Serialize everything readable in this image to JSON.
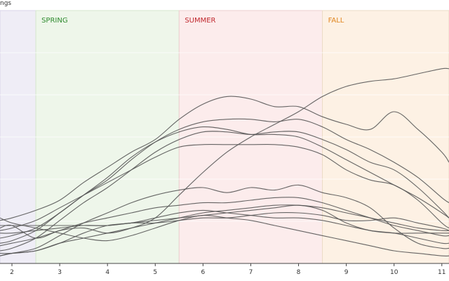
{
  "chart_data": {
    "type": "line",
    "corner_label": "ngs",
    "x_ticks": [
      2,
      3,
      4,
      5,
      6,
      7,
      8,
      9,
      10,
      11
    ],
    "xlim": [
      1.75,
      11.15
    ],
    "ylim": [
      0,
      100
    ],
    "grid": true,
    "seasons": [
      {
        "label": "",
        "start": 1.75,
        "end": 2.5,
        "fill": "#efedf6",
        "border": "#d9d4e8",
        "text_color": "#7a6aa8"
      },
      {
        "label": "SPRING",
        "start": 2.5,
        "end": 5.5,
        "fill": "#eef6ea",
        "border": "#d6e7cf",
        "text_color": "#2e8b2e"
      },
      {
        "label": "SUMMER",
        "start": 5.5,
        "end": 8.5,
        "fill": "#fcecec",
        "border": "#ecd0d0",
        "text_color": "#c0282e"
      },
      {
        "label": "FALL",
        "start": 8.5,
        "end": 11.15,
        "fill": "#fdf1e4",
        "border": "#ecdcc6",
        "text_color": "#e0861f"
      }
    ],
    "line_color": "#555555",
    "series": [
      {
        "x": [
          1.75,
          2,
          2.5,
          3,
          3.5,
          4,
          4.5,
          5,
          5.5,
          6,
          6.5,
          7,
          7.5,
          8,
          8.5,
          9,
          9.5,
          10,
          10.5,
          11,
          11.15
        ],
        "y": [
          14,
          15,
          10,
          13,
          14,
          12,
          14,
          18,
          27,
          36,
          44,
          50,
          55,
          60,
          66,
          70,
          72,
          73,
          75,
          77,
          77
        ]
      },
      {
        "x": [
          1.75,
          2,
          2.5,
          3,
          3.5,
          4,
          4.5,
          5,
          5.5,
          6,
          6.5,
          7,
          7.5,
          8,
          8.5,
          9,
          9.5,
          10,
          10.5,
          11,
          11.15
        ],
        "y": [
          17,
          18,
          21,
          25,
          32,
          38,
          44,
          49,
          57,
          63,
          66,
          65,
          62,
          62,
          58,
          55,
          53,
          60,
          53,
          44,
          40
        ]
      },
      {
        "x": [
          1.75,
          2,
          2.5,
          3,
          3.5,
          4,
          4.5,
          5,
          5.5,
          6,
          6.5,
          7,
          7.5,
          8,
          8.5,
          9,
          9.5,
          10,
          10.5,
          11,
          11.15
        ],
        "y": [
          10,
          11,
          14,
          20,
          27,
          33,
          41,
          48,
          53,
          56,
          57,
          57,
          56,
          57,
          54,
          49,
          45,
          40,
          34,
          26,
          24
        ]
      },
      {
        "x": [
          1.75,
          2,
          2.5,
          3,
          3.5,
          4,
          4.5,
          5,
          5.5,
          6,
          6.5,
          7,
          7.5,
          8,
          8.5,
          9,
          9.5,
          10,
          10.5,
          11,
          11.15
        ],
        "y": [
          8,
          9,
          13,
          20,
          27,
          34,
          42,
          48,
          52,
          54,
          53,
          51,
          51,
          50,
          46,
          41,
          36,
          31,
          26,
          20,
          18
        ]
      },
      {
        "x": [
          1.75,
          2,
          2.5,
          3,
          3.5,
          4,
          4.5,
          5,
          5.5,
          6,
          6.5,
          7,
          7.5,
          8,
          8.5,
          9,
          9.5,
          10,
          10.5,
          11,
          11.15
        ],
        "y": [
          5,
          6,
          10,
          17,
          24,
          30,
          37,
          44,
          49,
          52,
          52,
          51,
          52,
          52,
          49,
          45,
          40,
          37,
          30,
          21,
          18
        ]
      },
      {
        "x": [
          1.75,
          2,
          2.5,
          3,
          3.5,
          4,
          4.5,
          5,
          5.5,
          6,
          6.5,
          7,
          7.5,
          8,
          8.5,
          9,
          9.5,
          10,
          10.5,
          11,
          11.15
        ],
        "y": [
          13,
          14,
          17,
          22,
          27,
          32,
          37,
          42,
          46,
          47,
          47,
          47,
          47,
          46,
          43,
          37,
          33,
          31,
          25,
          16,
          14
        ]
      },
      {
        "x": [
          1.75,
          2,
          2.5,
          3,
          3.5,
          4,
          4.5,
          5,
          5.5,
          6,
          6.5,
          7,
          7.5,
          8,
          8.5,
          9,
          9.5,
          10,
          10.5,
          11,
          11.15
        ],
        "y": [
          3,
          4,
          6,
          11,
          16,
          20,
          24,
          27,
          29,
          30,
          28,
          30,
          29,
          31,
          28,
          26,
          22,
          14,
          8,
          6,
          6
        ]
      },
      {
        "x": [
          1.75,
          2,
          2.5,
          3,
          3.5,
          4,
          4.5,
          5,
          5.5,
          6,
          6.5,
          7,
          7.5,
          8,
          8.5,
          9,
          9.5,
          10,
          10.5,
          11,
          11.15
        ],
        "y": [
          15,
          15,
          15,
          15,
          15,
          15,
          16,
          16,
          17,
          18,
          18,
          19,
          20,
          20,
          19,
          17,
          17,
          18,
          16,
          14,
          13
        ]
      },
      {
        "x": [
          1.75,
          2,
          2.5,
          3,
          3.5,
          4,
          4.5,
          5,
          5.5,
          6,
          6.5,
          7,
          7.5,
          8,
          8.5,
          9,
          9.5,
          10,
          10.5,
          11,
          11.15
        ],
        "y": [
          12,
          12,
          13,
          14,
          15,
          15,
          16,
          17,
          18,
          19,
          20,
          21,
          22,
          23,
          21,
          16,
          13,
          12,
          12,
          12,
          12
        ]
      },
      {
        "x": [
          1.75,
          2,
          2.5,
          3,
          3.5,
          4,
          4.5,
          5,
          5.5,
          6,
          6.5,
          7,
          7.5,
          8,
          8.5,
          9,
          9.5,
          10,
          10.5,
          11,
          11.15
        ],
        "y": [
          7,
          8,
          10,
          13,
          16,
          18,
          20,
          22,
          23,
          24,
          24,
          25,
          26,
          26,
          24,
          21,
          18,
          15,
          13,
          11,
          11
        ]
      },
      {
        "x": [
          1.75,
          2,
          2.5,
          3,
          3.5,
          4,
          4.5,
          5,
          5.5,
          6,
          6.5,
          7,
          7.5,
          8,
          8.5,
          9,
          9.5,
          10,
          10.5,
          11,
          11.15
        ],
        "y": [
          18,
          16,
          14,
          12,
          10,
          9,
          11,
          14,
          17,
          19,
          18,
          17,
          15,
          13,
          11,
          9,
          7,
          5,
          4,
          3,
          3
        ]
      },
      {
        "x": [
          1.75,
          2,
          2.5,
          3,
          3.5,
          4,
          4.5,
          5,
          5.5,
          6,
          6.5,
          7,
          7.5,
          8,
          8.5,
          9,
          9.5,
          10,
          10.5,
          11,
          11.15
        ],
        "y": [
          3,
          4,
          5,
          8,
          12,
          15,
          16,
          18,
          20,
          21,
          20,
          19,
          18,
          18,
          17,
          15,
          13,
          12,
          10,
          8,
          8
        ]
      },
      {
        "x": [
          1.75,
          2,
          2.5,
          3,
          3.5,
          4,
          4.5,
          5,
          5.5,
          6,
          6.5,
          7,
          7.5,
          8,
          8.5,
          9,
          9.5,
          10,
          10.5,
          11,
          11.15
        ],
        "y": [
          4,
          4,
          5,
          8,
          10,
          12,
          14,
          16,
          18,
          20,
          21,
          22,
          23,
          23,
          22,
          20,
          18,
          16,
          14,
          13,
          13
        ]
      }
    ]
  }
}
